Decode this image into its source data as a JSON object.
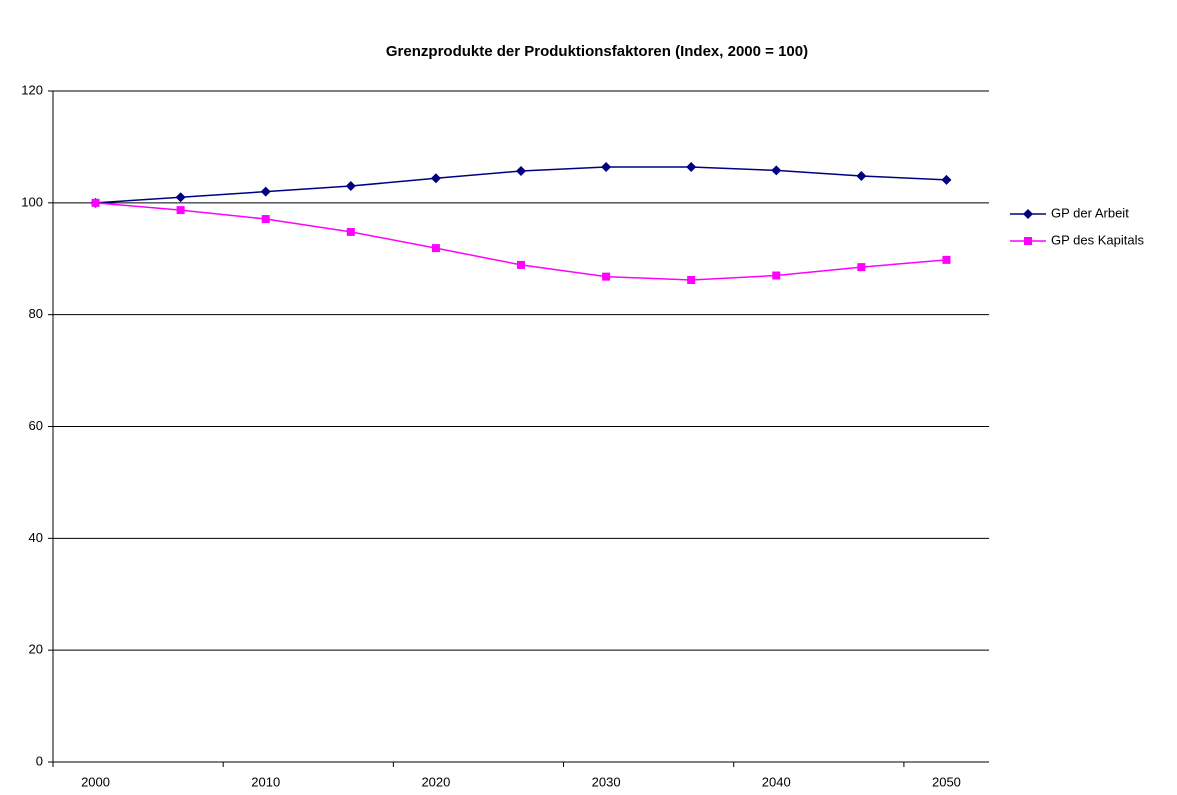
{
  "chart_data": {
    "type": "line",
    "title": "Grenzprodukte der Produktionsfaktoren (Index, 2000 = 100)",
    "categories": [
      "2000",
      null,
      "2010",
      null,
      "2020",
      null,
      "2030",
      null,
      "2040",
      null,
      "2050"
    ],
    "series": [
      {
        "name": "GP der Arbeit",
        "color": "#000080",
        "marker": "diamond",
        "values": [
          100,
          101.0,
          102.0,
          103.0,
          104.4,
          105.7,
          106.4,
          106.4,
          105.8,
          104.8,
          104.1
        ]
      },
      {
        "name": "GP des Kapitals",
        "color": "#ff00ff",
        "marker": "square",
        "values": [
          100,
          98.7,
          97.1,
          94.8,
          91.9,
          88.9,
          86.8,
          86.2,
          87.0,
          88.5,
          89.8
        ]
      }
    ],
    "ylim": [
      0,
      120
    ],
    "yticks": [
      0,
      20,
      40,
      60,
      80,
      100,
      120
    ],
    "grid": true,
    "legend": "right"
  }
}
